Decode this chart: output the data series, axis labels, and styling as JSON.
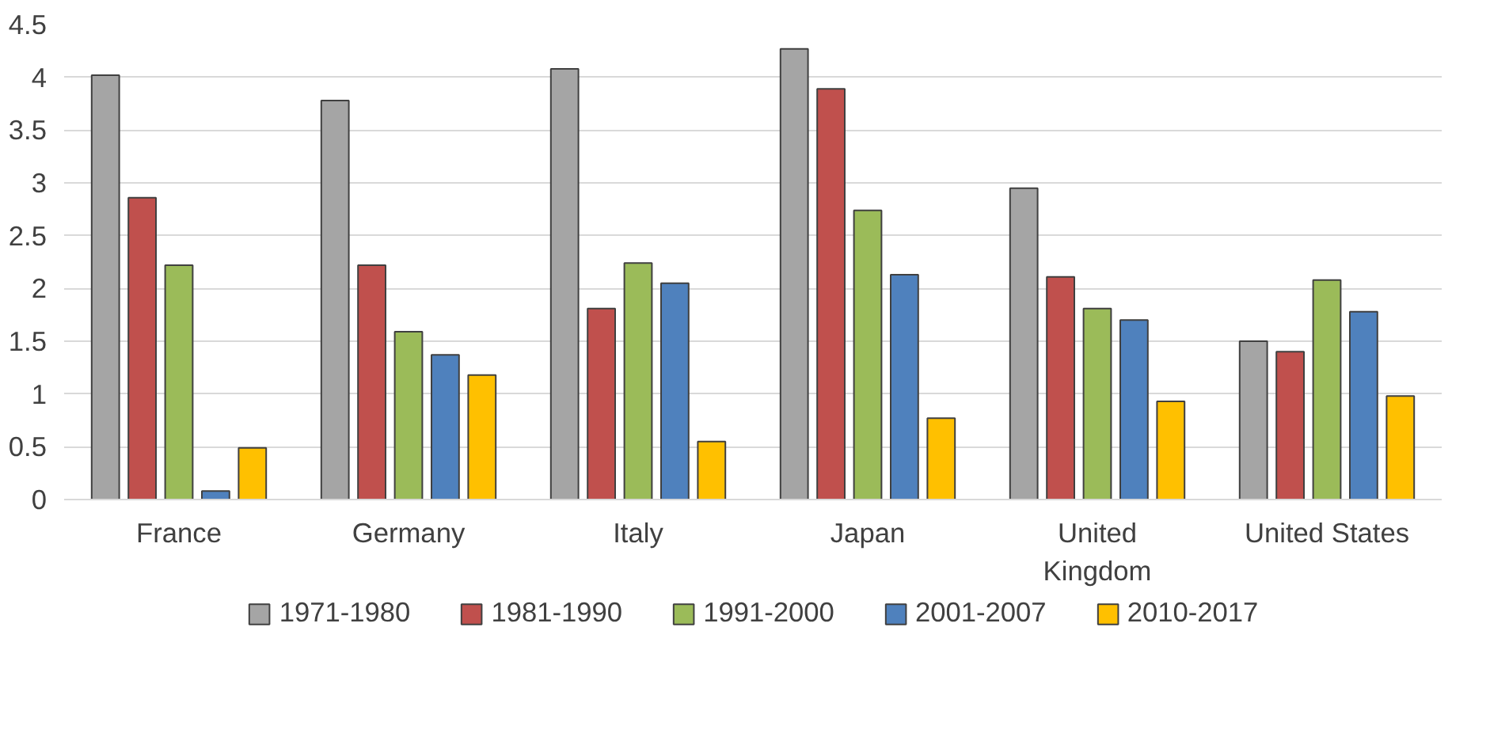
{
  "chart_data": {
    "type": "bar",
    "categories": [
      "France",
      "Germany",
      "Italy",
      "Japan",
      "United Kingdom",
      "United States"
    ],
    "series": [
      {
        "name": "1971-1980",
        "color": "#a5a5a5",
        "values": [
          4.02,
          3.78,
          4.08,
          4.27,
          2.95,
          1.5
        ]
      },
      {
        "name": "1981-1990",
        "color": "#c0504d",
        "values": [
          2.86,
          2.22,
          1.81,
          3.89,
          2.11,
          1.4
        ]
      },
      {
        "name": "1991-2000",
        "color": "#9bbb59",
        "values": [
          2.22,
          1.59,
          2.24,
          2.74,
          1.81,
          2.08
        ]
      },
      {
        "name": "2001-2007",
        "color": "#4f81bd",
        "values": [
          0.08,
          1.37,
          2.05,
          2.13,
          1.7,
          1.78
        ]
      },
      {
        "name": "2010-2017",
        "color": "#ffc000",
        "values": [
          0.49,
          1.18,
          0.55,
          0.77,
          0.93,
          0.98
        ]
      }
    ],
    "ylim": [
      0,
      4.5
    ],
    "yticks": [
      0,
      0.5,
      1,
      1.5,
      2,
      2.5,
      3,
      3.5,
      4,
      4.5
    ],
    "grid": "y",
    "legend": "bottom"
  }
}
